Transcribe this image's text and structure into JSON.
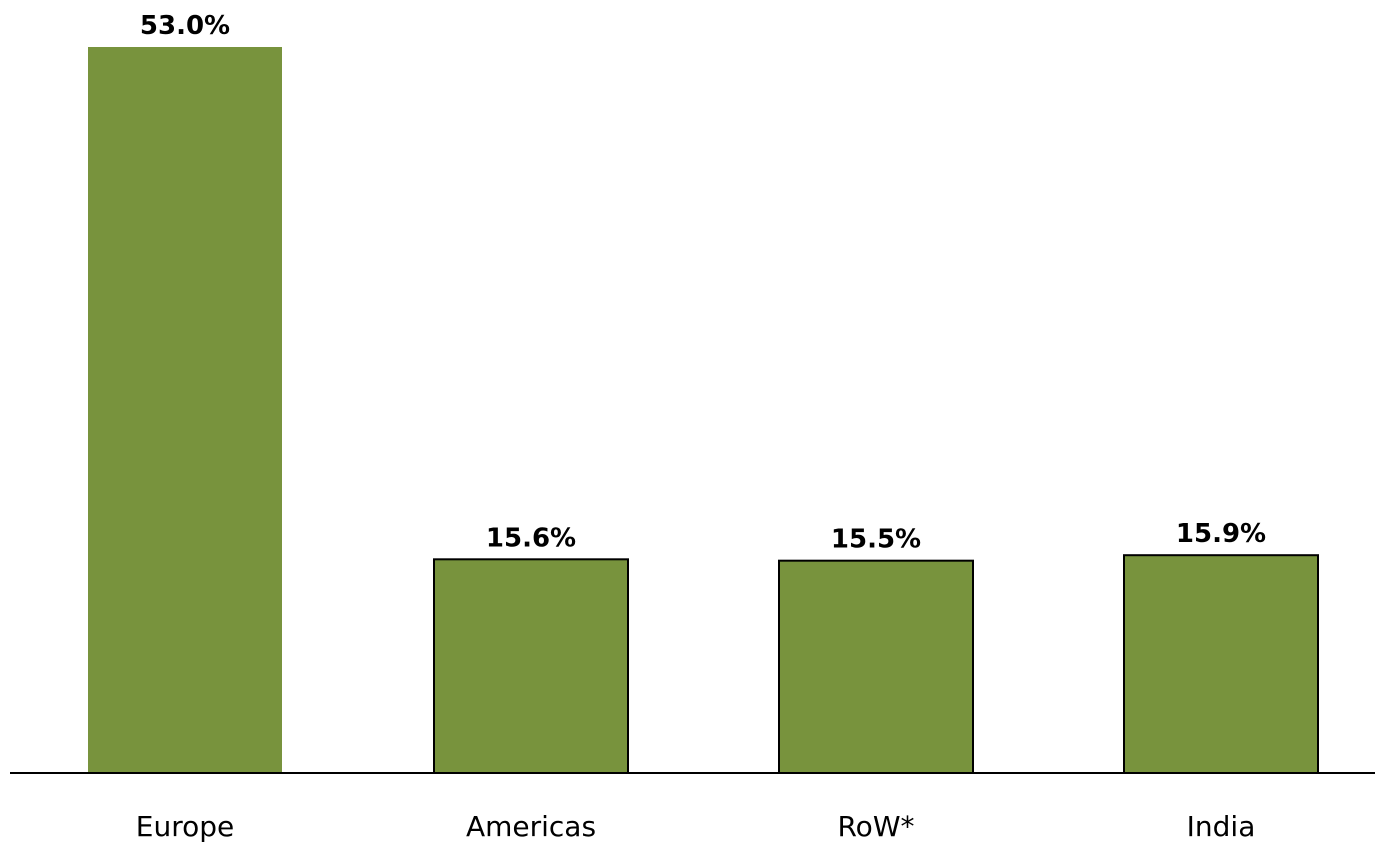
{
  "chart_data": {
    "type": "bar",
    "categories": [
      "Europe",
      "Americas",
      "RoW*",
      "India"
    ],
    "values": [
      53.0,
      15.6,
      15.5,
      15.9
    ],
    "data_labels": [
      "53.0%",
      "15.6%",
      "15.5%",
      "15.9%"
    ],
    "ylim": [
      0,
      53.0
    ],
    "grid": false,
    "legend": "none"
  },
  "colors": {
    "bar_fill": "#78933d",
    "bar_outline": "#000000",
    "axis": "#000000"
  }
}
